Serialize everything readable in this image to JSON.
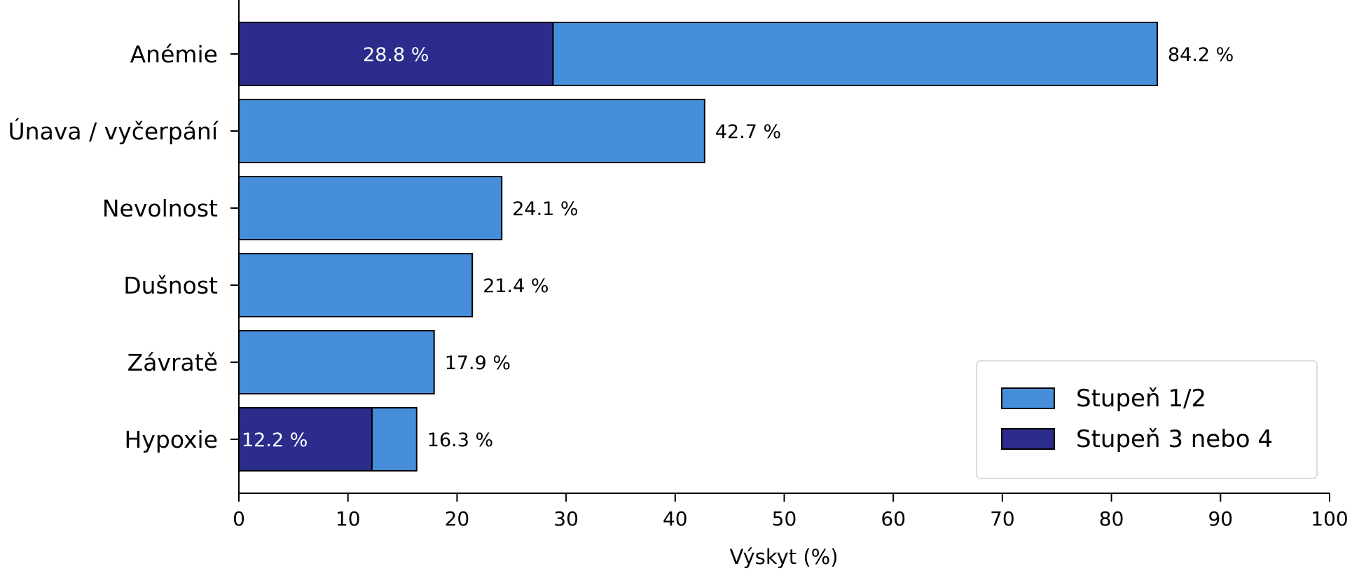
{
  "chart_data": {
    "type": "bar",
    "orientation": "horizontal",
    "stacked": true,
    "categories": [
      "Anémie",
      "Únava / vyčerpání",
      "Nevolnost",
      "Dušnost",
      "Závratě",
      "Hypoxie"
    ],
    "totals": [
      84.2,
      42.7,
      24.1,
      21.4,
      17.9,
      16.3
    ],
    "total_labels": [
      "84.2 %",
      "42.7 %",
      "24.1 %",
      "21.4 %",
      "17.9 %",
      "16.3 %"
    ],
    "series": [
      {
        "name": "Stupeň 1/2",
        "color": "#468ed9",
        "values": [
          55.4,
          42.7,
          24.1,
          21.4,
          17.9,
          4.1
        ]
      },
      {
        "name": "Stupeň 3 nebo 4",
        "color": "#2b2c8c",
        "values": [
          28.8,
          0,
          0,
          0,
          0,
          12.2
        ],
        "labels": [
          "28.8 %",
          "",
          "",
          "",
          "",
          "12.2 %"
        ]
      }
    ],
    "xlabel": "Výskyt (%)",
    "xlim": [
      0,
      100
    ],
    "xticks": [
      0,
      10,
      20,
      30,
      40,
      50,
      60,
      70,
      80,
      90,
      100
    ],
    "grid": false,
    "legend_position": "bottom-right"
  }
}
